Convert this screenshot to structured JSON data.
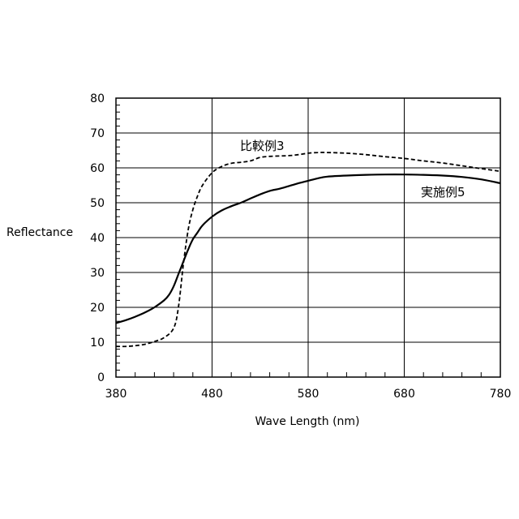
{
  "chart_data": {
    "type": "line",
    "xlabel": "Wave Length (nm)",
    "ylabel": "Reflectance",
    "xlim": [
      380,
      780
    ],
    "ylim": [
      0,
      80
    ],
    "x_ticks": [
      380,
      480,
      580,
      680,
      780
    ],
    "y_ticks": [
      0,
      10,
      20,
      30,
      40,
      50,
      60,
      70,
      80
    ],
    "grid": true,
    "series": [
      {
        "name": "比較例3",
        "style": "dashed",
        "color": "#000000",
        "x": [
          380,
          390,
          400,
          410,
          420,
          430,
          440,
          445,
          450,
          455,
          460,
          465,
          470,
          480,
          490,
          500,
          510,
          520,
          530,
          540,
          550,
          560,
          570,
          580,
          590,
          600,
          620,
          640,
          660,
          680,
          700,
          720,
          740,
          760,
          780
        ],
        "y": [
          8.8,
          8.8,
          9.0,
          9.4,
          10.2,
          11.3,
          14.0,
          20.0,
          32.0,
          42.0,
          48.0,
          52.0,
          55.0,
          58.6,
          60.4,
          61.3,
          61.6,
          62.0,
          63.0,
          63.3,
          63.4,
          63.5,
          63.8,
          64.2,
          64.4,
          64.4,
          64.2,
          63.8,
          63.2,
          62.7,
          62.0,
          61.4,
          60.6,
          59.8,
          59.0
        ]
      },
      {
        "name": "実施例5",
        "style": "solid",
        "color": "#000000",
        "x": [
          380,
          390,
          400,
          410,
          420,
          430,
          435,
          440,
          445,
          450,
          455,
          460,
          465,
          470,
          480,
          490,
          500,
          510,
          520,
          530,
          540,
          550,
          560,
          570,
          580,
          590,
          600,
          620,
          640,
          660,
          680,
          700,
          720,
          740,
          760,
          780
        ],
        "y": [
          15.5,
          16.3,
          17.3,
          18.5,
          20.0,
          22.0,
          23.5,
          26.0,
          29.5,
          33.0,
          36.5,
          39.5,
          41.5,
          43.5,
          46.0,
          47.8,
          49.0,
          50.0,
          51.2,
          52.4,
          53.4,
          54.0,
          54.8,
          55.6,
          56.3,
          57.0,
          57.5,
          57.8,
          58.0,
          58.1,
          58.1,
          58.0,
          57.8,
          57.4,
          56.7,
          55.6
        ]
      }
    ],
    "series_labels": {
      "s0": "比較例3",
      "s1": "実施例5"
    }
  }
}
